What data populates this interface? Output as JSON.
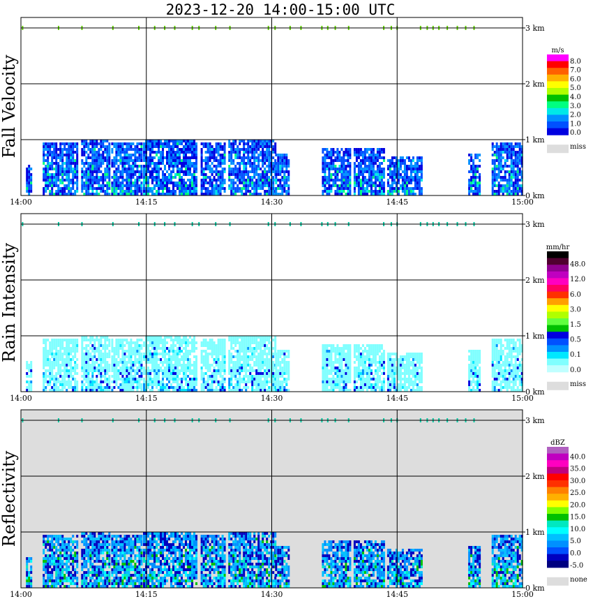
{
  "chart_data": {
    "type": "heatmap",
    "title": "2023-12-20  14:00-15:00 UTC",
    "x_ticks": [
      "14:00",
      "14:15",
      "14:30",
      "14:45",
      "15:00"
    ],
    "y_ticks": [
      "0 km",
      "1 km",
      "2 km",
      "3 km"
    ],
    "xlim": [
      "14:00",
      "15:00"
    ],
    "ylim_km": [
      0,
      3.2
    ],
    "grid": true,
    "panels": [
      {
        "name": "fall-velocity",
        "ylabel": "Fall Velocity",
        "unit": "m/s",
        "background": "#ffffff",
        "colorbar": {
          "colors": [
            "#ff00ff",
            "#ff0000",
            "#ff6000",
            "#ffb000",
            "#ffff00",
            "#b0ff00",
            "#00c000",
            "#00ff80",
            "#00e8e8",
            "#0090ff",
            "#0050ff",
            "#0000e0"
          ],
          "labels": [
            "8.0",
            "7.0",
            "6.0",
            "5.0",
            "4.0",
            "3.0",
            "2.0",
            "1.0",
            "0.0"
          ],
          "missing_label": "miss",
          "missing_color": "#dddddd"
        },
        "echo_palette": [
          "#0050ff",
          "#0090ff",
          "#0000e0",
          "#0050ff",
          "#00e8e8",
          "#00ff80"
        ]
      },
      {
        "name": "rain-intensity",
        "ylabel": "Rain Intensity",
        "unit": "mm/hr",
        "background": "#ffffff",
        "colorbar": {
          "colors": [
            "#000000",
            "#500030",
            "#900090",
            "#c000c0",
            "#ff00c0",
            "#ff0060",
            "#ff3000",
            "#ffa000",
            "#ffff00",
            "#b0ff00",
            "#60ff40",
            "#00c000",
            "#0000e0",
            "#0050ff",
            "#0090ff",
            "#00e8ff",
            "#80ffff",
            "#c0ffff"
          ],
          "labels": [
            "48.0",
            "12.0",
            "6.0",
            "3.0",
            "1.5",
            "0.5",
            "0.1",
            "0.0"
          ],
          "missing_label": "miss",
          "missing_color": "#dddddd"
        },
        "echo_palette": [
          "#80ffff",
          "#80ffff",
          "#80ffff",
          "#00e8ff",
          "#0090ff",
          "#0000e0"
        ]
      },
      {
        "name": "reflectivity",
        "ylabel": "Reflectivity",
        "unit": "dBZ",
        "background": "#dddddd",
        "colorbar": {
          "colors": [
            "#b060c0",
            "#c000c0",
            "#ff00c0",
            "#c00080",
            "#ff0000",
            "#ff3000",
            "#ff8000",
            "#ffb000",
            "#ffff00",
            "#80ff00",
            "#00c000",
            "#00e8c0",
            "#00ffff",
            "#00c0ff",
            "#0090ff",
            "#0050ff",
            "#0000c0",
            "#000080"
          ],
          "labels": [
            "40.0",
            "35.0",
            "30.0",
            "25.0",
            "20.0",
            "15.0",
            "10.0",
            "5.0",
            "0.0",
            "-5.0"
          ],
          "missing_label": "none",
          "missing_color": "#dddddd"
        },
        "echo_palette": [
          "#0090ff",
          "#00c0ff",
          "#0000c0",
          "#00ffff",
          "#00e8c0",
          "#00c000"
        ]
      }
    ],
    "echo_columns_minutes": [
      {
        "start": 0.6,
        "end": 1.2,
        "top_km": 0.55
      },
      {
        "start": 2.6,
        "end": 6.8,
        "top_km": 0.95
      },
      {
        "start": 7.2,
        "end": 10.5,
        "top_km": 1.0
      },
      {
        "start": 10.8,
        "end": 14.5,
        "top_km": 0.95
      },
      {
        "start": 14.6,
        "end": 21.0,
        "top_km": 1.0
      },
      {
        "start": 21.5,
        "end": 24.5,
        "top_km": 0.95
      },
      {
        "start": 24.8,
        "end": 30.4,
        "top_km": 1.0
      },
      {
        "start": 30.4,
        "end": 32.0,
        "top_km": 0.75
      },
      {
        "start": 36.0,
        "end": 39.5,
        "top_km": 0.85
      },
      {
        "start": 39.8,
        "end": 43.5,
        "top_km": 0.85
      },
      {
        "start": 43.8,
        "end": 48.0,
        "top_km": 0.7
      },
      {
        "start": 53.5,
        "end": 55.0,
        "top_km": 0.75
      },
      {
        "start": 56.3,
        "end": 60.0,
        "top_km": 0.95
      }
    ],
    "cloud_top_marks_minutes": [
      0.2,
      4.5,
      7.3,
      11.0,
      14.1,
      16.0,
      17.2,
      18.4,
      20.5,
      21.3,
      23.3,
      25.0,
      29.6,
      30.4,
      32.2,
      33.5,
      36.0,
      36.7,
      37.6,
      39.2,
      43.4,
      44.3,
      45.0,
      47.8,
      48.6,
      49.3,
      50.0,
      51.0,
      52.2,
      53.2,
      54.2
    ]
  }
}
